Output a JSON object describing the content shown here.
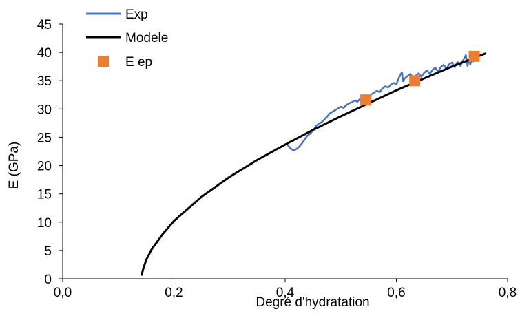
{
  "chart_data": {
    "type": "line",
    "xlabel": "Degré d'hydratation",
    "ylabel": "E (GPa)",
    "xlim": [
      0.0,
      0.8
    ],
    "ylim": [
      0,
      45
    ],
    "x_ticks": [
      "0,0",
      "0,2",
      "0,4",
      "0,6",
      "0,8"
    ],
    "x_tick_values": [
      0.0,
      0.2,
      0.4,
      0.6,
      0.8
    ],
    "y_ticks": [
      "0",
      "5",
      "10",
      "15",
      "20",
      "25",
      "30",
      "35",
      "40",
      "45"
    ],
    "y_tick_values": [
      0,
      5,
      10,
      15,
      20,
      25,
      30,
      35,
      40,
      45
    ],
    "grid": false,
    "legend_position": "top-left",
    "series": [
      {
        "name": "Exp",
        "kind": "line",
        "color": "#4472C4",
        "points": [
          [
            0.405,
            23.6
          ],
          [
            0.41,
            23.0
          ],
          [
            0.415,
            22.7
          ],
          [
            0.42,
            22.9
          ],
          [
            0.425,
            23.3
          ],
          [
            0.43,
            23.9
          ],
          [
            0.435,
            24.6
          ],
          [
            0.44,
            25.3
          ],
          [
            0.445,
            25.6
          ],
          [
            0.45,
            26.2
          ],
          [
            0.455,
            26.9
          ],
          [
            0.46,
            27.4
          ],
          [
            0.465,
            27.6
          ],
          [
            0.47,
            28.1
          ],
          [
            0.475,
            28.6
          ],
          [
            0.48,
            29.2
          ],
          [
            0.485,
            29.5
          ],
          [
            0.49,
            29.8
          ],
          [
            0.495,
            30.1
          ],
          [
            0.5,
            30.4
          ],
          [
            0.505,
            30.2
          ],
          [
            0.51,
            30.7
          ],
          [
            0.515,
            31.0
          ],
          [
            0.52,
            31.2
          ],
          [
            0.525,
            31.5
          ],
          [
            0.53,
            31.3
          ],
          [
            0.535,
            31.8
          ],
          [
            0.54,
            32.0
          ],
          [
            0.545,
            32.3
          ],
          [
            0.55,
            32.1
          ],
          [
            0.555,
            32.6
          ],
          [
            0.56,
            32.9
          ],
          [
            0.565,
            33.2
          ],
          [
            0.57,
            33.0
          ],
          [
            0.575,
            33.6
          ],
          [
            0.58,
            34.0
          ],
          [
            0.585,
            33.8
          ],
          [
            0.59,
            34.3
          ],
          [
            0.595,
            34.6
          ],
          [
            0.6,
            34.4
          ],
          [
            0.605,
            35.6
          ],
          [
            0.61,
            36.5
          ],
          [
            0.612,
            34.9
          ],
          [
            0.615,
            35.4
          ],
          [
            0.62,
            35.8
          ],
          [
            0.625,
            36.2
          ],
          [
            0.63,
            35.5
          ],
          [
            0.635,
            35.9
          ],
          [
            0.64,
            36.3
          ],
          [
            0.645,
            35.7
          ],
          [
            0.65,
            36.4
          ],
          [
            0.655,
            36.8
          ],
          [
            0.66,
            36.2
          ],
          [
            0.665,
            36.9
          ],
          [
            0.67,
            37.3
          ],
          [
            0.675,
            36.6
          ],
          [
            0.68,
            37.4
          ],
          [
            0.685,
            37.8
          ],
          [
            0.69,
            37.1
          ],
          [
            0.695,
            37.9
          ],
          [
            0.7,
            38.2
          ],
          [
            0.705,
            37.4
          ],
          [
            0.71,
            38.3
          ],
          [
            0.715,
            37.6
          ],
          [
            0.72,
            38.6
          ],
          [
            0.725,
            39.5
          ],
          [
            0.728,
            37.6
          ],
          [
            0.73,
            38.7
          ],
          [
            0.733,
            37.9
          ],
          [
            0.736,
            38.9
          ],
          [
            0.738,
            38.4
          ]
        ]
      },
      {
        "name": "Modele",
        "kind": "line",
        "color": "#000000",
        "points": [
          [
            0.142,
            0.7
          ],
          [
            0.145,
            1.8
          ],
          [
            0.15,
            3.3
          ],
          [
            0.16,
            5.2
          ],
          [
            0.18,
            7.9
          ],
          [
            0.2,
            10.2
          ],
          [
            0.25,
            14.5
          ],
          [
            0.3,
            18.0
          ],
          [
            0.35,
            21.0
          ],
          [
            0.4,
            23.7
          ],
          [
            0.45,
            26.3
          ],
          [
            0.5,
            28.7
          ],
          [
            0.55,
            31.0
          ],
          [
            0.6,
            33.3
          ],
          [
            0.65,
            35.4
          ],
          [
            0.7,
            37.5
          ],
          [
            0.76,
            39.8
          ]
        ]
      },
      {
        "name": "E ep",
        "kind": "marker",
        "color": "#ED7D31",
        "points": [
          [
            0.545,
            31.6
          ],
          [
            0.633,
            35.0
          ],
          [
            0.74,
            39.3
          ]
        ]
      }
    ]
  }
}
